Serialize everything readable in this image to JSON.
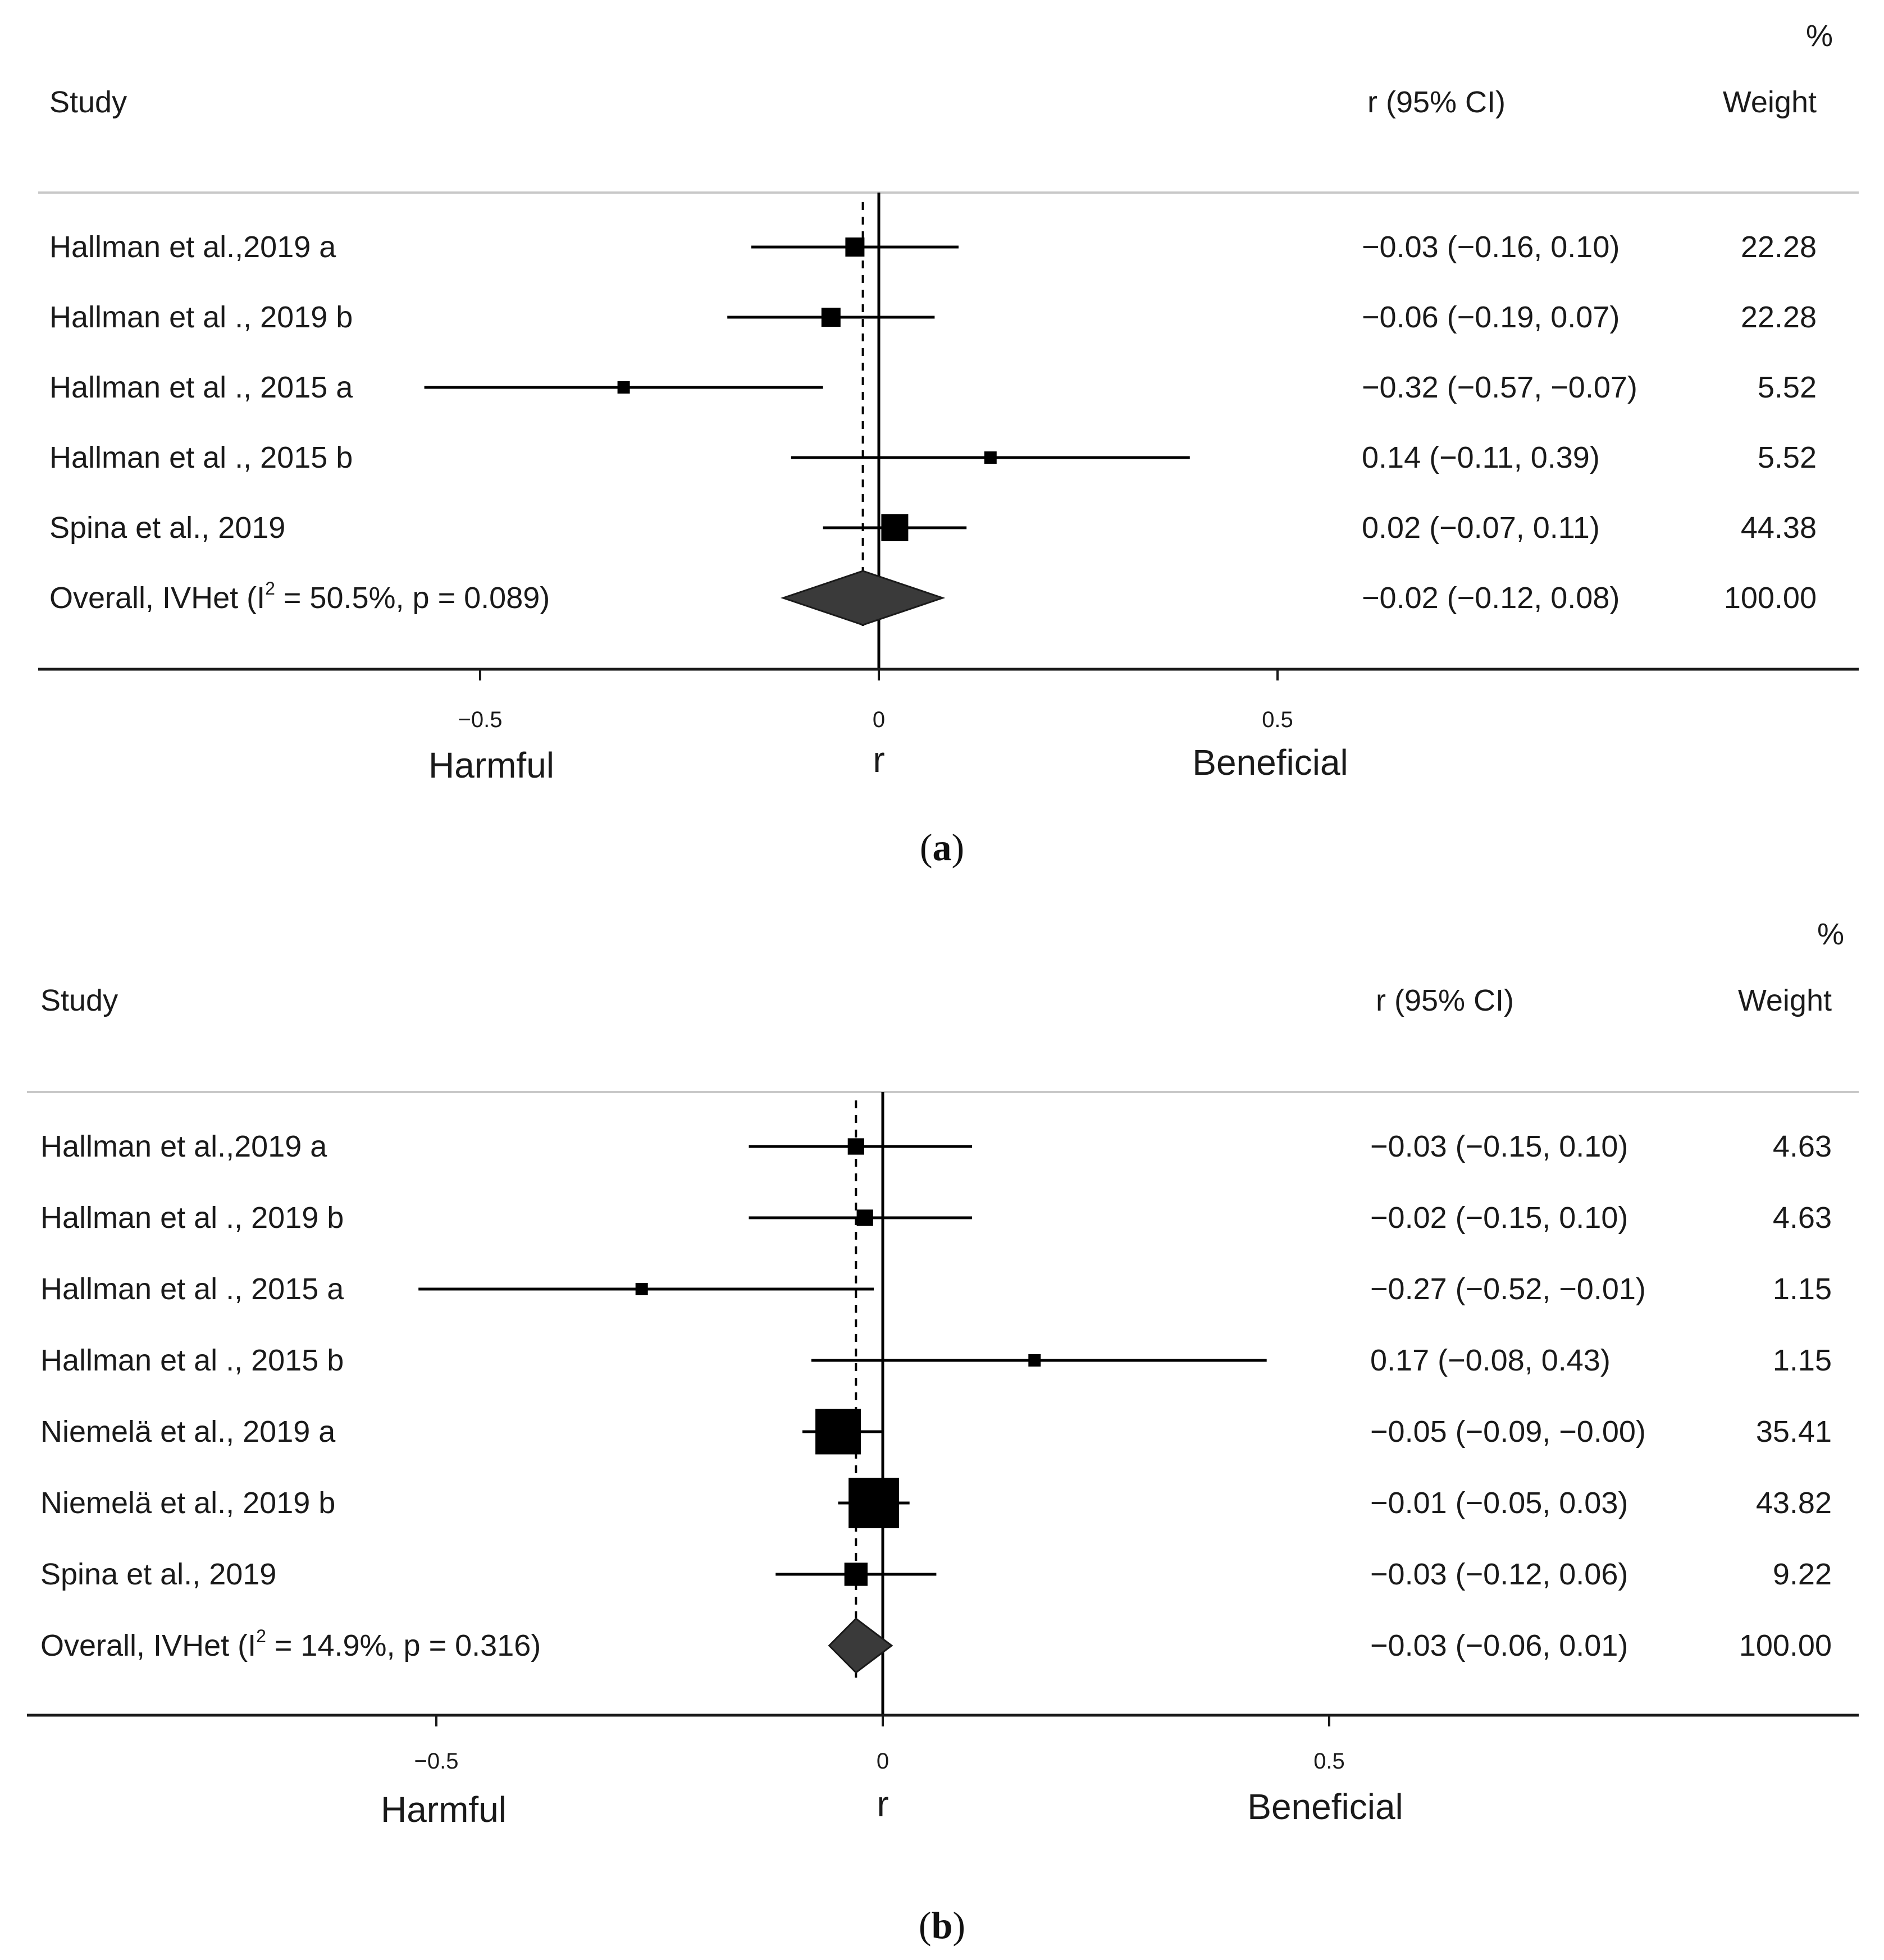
{
  "chart_data": [
    {
      "panel": "a",
      "type": "forest",
      "headers": {
        "study": "Study",
        "ci": "r (95% CI)",
        "pct": "%",
        "weight": "Weight"
      },
      "studies": [
        {
          "label": "Hallman et al.,2019 a",
          "r": -0.03,
          "lo": -0.16,
          "hi": 0.1,
          "ci_text": "−0.03 (−0.16, 0.10)",
          "weight": 22.28,
          "weight_text": "22.28"
        },
        {
          "label": "Hallman et al ., 2019 b",
          "r": -0.06,
          "lo": -0.19,
          "hi": 0.07,
          "ci_text": "−0.06 (−0.19, 0.07)",
          "weight": 22.28,
          "weight_text": "22.28"
        },
        {
          "label": "Hallman et al ., 2015 a",
          "r": -0.32,
          "lo": -0.57,
          "hi": -0.07,
          "ci_text": "−0.32 (−0.57, −0.07)",
          "weight": 5.52,
          "weight_text": "5.52"
        },
        {
          "label": "Hallman et al ., 2015 b",
          "r": 0.14,
          "lo": -0.11,
          "hi": 0.39,
          "ci_text": "0.14 (−0.11, 0.39)",
          "weight": 5.52,
          "weight_text": "5.52"
        },
        {
          "label": "Spina et al., 2019",
          "r": 0.02,
          "lo": -0.07,
          "hi": 0.11,
          "ci_text": "0.02 (−0.07, 0.11)",
          "weight": 44.38,
          "weight_text": "44.38"
        }
      ],
      "overall": {
        "label_prefix": "Overall, IVHet (I",
        "label_sup": "2",
        "label_suffix": " = 50.5%, p = 0.089)",
        "r": -0.02,
        "lo": -0.12,
        "hi": 0.08,
        "ci_text": "−0.02 (−0.12, 0.08)",
        "weight_text": "100.00"
      },
      "x_ticks": [
        {
          "value": -0.5,
          "label": "−0.5"
        },
        {
          "value": 0,
          "label": "0"
        },
        {
          "value": 0.5,
          "label": "0.5"
        }
      ],
      "x_range": [
        -1.06,
        1.23
      ],
      "xlabel": "r",
      "left_label": "Harmful",
      "right_label": "Beneficial",
      "caption": "a"
    },
    {
      "panel": "b",
      "type": "forest",
      "headers": {
        "study": "Study",
        "ci": "r (95% CI)",
        "pct": "%",
        "weight": "Weight"
      },
      "studies": [
        {
          "label": "Hallman et al.,2019 a",
          "r": -0.03,
          "lo": -0.15,
          "hi": 0.1,
          "ci_text": "−0.03 (−0.15, 0.10)",
          "weight": 4.63,
          "weight_text": "4.63"
        },
        {
          "label": "Hallman et al ., 2019 b",
          "r": -0.02,
          "lo": -0.15,
          "hi": 0.1,
          "ci_text": "−0.02 (−0.15, 0.10)",
          "weight": 4.63,
          "weight_text": "4.63"
        },
        {
          "label": "Hallman et al ., 2015 a",
          "r": -0.27,
          "lo": -0.52,
          "hi": -0.01,
          "ci_text": "−0.27 (−0.52, −0.01)",
          "weight": 1.15,
          "weight_text": "1.15"
        },
        {
          "label": "Hallman et al ., 2015 b",
          "r": 0.17,
          "lo": -0.08,
          "hi": 0.43,
          "ci_text": "0.17 (−0.08, 0.43)",
          "weight": 1.15,
          "weight_text": "1.15"
        },
        {
          "label": "Niemelä et al., 2019 a",
          "r": -0.05,
          "lo": -0.09,
          "hi": -0.0,
          "ci_text": "−0.05 (−0.09, −0.00)",
          "weight": 35.41,
          "weight_text": "35.41"
        },
        {
          "label": "Niemelä et al., 2019 b",
          "r": -0.01,
          "lo": -0.05,
          "hi": 0.03,
          "ci_text": "−0.01 (−0.05, 0.03)",
          "weight": 43.82,
          "weight_text": "43.82"
        },
        {
          "label": "Spina et al., 2019",
          "r": -0.03,
          "lo": -0.12,
          "hi": 0.06,
          "ci_text": "−0.03 (−0.12, 0.06)",
          "weight": 9.22,
          "weight_text": "9.22"
        }
      ],
      "overall": {
        "label_prefix": "Overall, IVHet (I",
        "label_sup": "2",
        "label_suffix": " = 14.9%, p = 0.316)",
        "r": -0.03,
        "lo": -0.06,
        "hi": 0.01,
        "ci_text": "−0.03 (−0.06, 0.01)",
        "weight_text": "100.00"
      },
      "x_ticks": [
        {
          "value": -0.5,
          "label": "−0.5"
        },
        {
          "value": 0,
          "label": "0"
        },
        {
          "value": 0.5,
          "label": "0.5"
        }
      ],
      "x_range": [
        -0.95,
        1.1
      ],
      "xlabel": "r",
      "left_label": "Harmful",
      "right_label": "Beneficial",
      "caption": "b"
    }
  ]
}
